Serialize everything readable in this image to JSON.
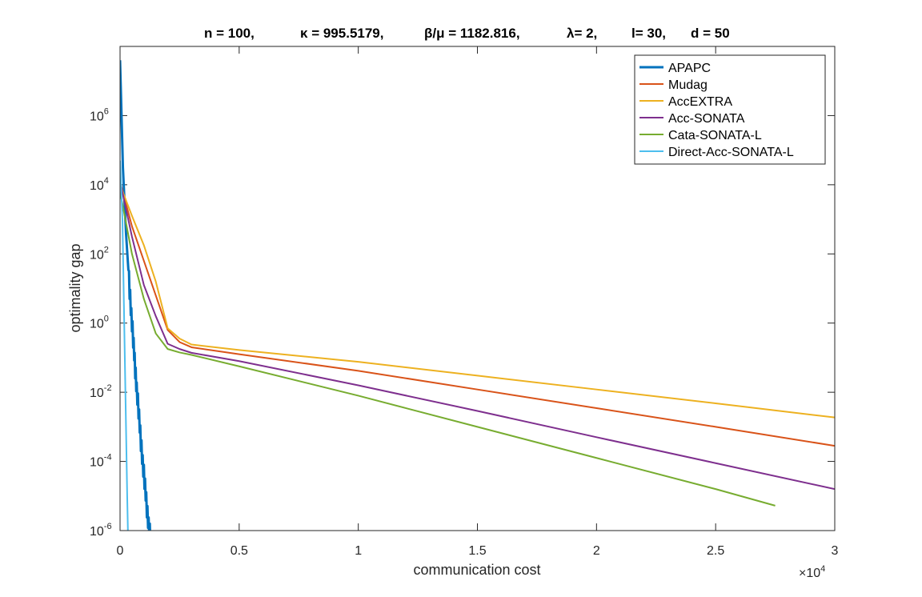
{
  "chart_data": {
    "type": "line",
    "title_parts": [
      "n = 100,",
      "κ = 995.5179,",
      "β/μ = 1182.816,",
      "λ= 2,",
      "l= 30,",
      "d = 50"
    ],
    "xlabel": "communication cost",
    "ylabel": "optimality gap",
    "x_multiplier_label": "×10",
    "x_multiplier_exponent": "4",
    "xlim": [
      0,
      3
    ],
    "ylim_log10": [
      -6,
      8
    ],
    "y_scale": "log",
    "xticks": [
      {
        "value": 0,
        "label": "0"
      },
      {
        "value": 0.5,
        "label": "0.5"
      },
      {
        "value": 1,
        "label": "1"
      },
      {
        "value": 1.5,
        "label": "1.5"
      },
      {
        "value": 2,
        "label": "2"
      },
      {
        "value": 2.5,
        "label": "2.5"
      },
      {
        "value": 3,
        "label": "3"
      }
    ],
    "yticks": [
      {
        "exp": -6,
        "base": "10",
        "label": "-6"
      },
      {
        "exp": -4,
        "base": "10",
        "label": "-4"
      },
      {
        "exp": -2,
        "base": "10",
        "label": "-2"
      },
      {
        "exp": 0,
        "base": "10",
        "label": "0"
      },
      {
        "exp": 2,
        "base": "10",
        "label": "2"
      },
      {
        "exp": 4,
        "base": "10",
        "label": "4"
      },
      {
        "exp": 6,
        "base": "10",
        "label": "6"
      }
    ],
    "legend_position": "top-right",
    "grid": false,
    "series": [
      {
        "name": "APAPC",
        "color": "#0072BD",
        "width": 3,
        "jagged": true,
        "points": [
          [
            0,
            7.6
          ],
          [
            0.012,
            4.5
          ],
          [
            0.025,
            2.6
          ],
          [
            0.04,
            1.0
          ],
          [
            0.055,
            -0.5
          ],
          [
            0.07,
            -1.9
          ],
          [
            0.085,
            -3.2
          ],
          [
            0.1,
            -4.4
          ],
          [
            0.115,
            -5.5
          ],
          [
            0.13,
            -6.4
          ]
        ]
      },
      {
        "name": "Mudag",
        "color": "#D95319",
        "width": 2,
        "points": [
          [
            0,
            4.1
          ],
          [
            0.05,
            2.8
          ],
          [
            0.1,
            1.8
          ],
          [
            0.15,
            0.8
          ],
          [
            0.2,
            -0.2
          ],
          [
            0.25,
            -0.55
          ],
          [
            0.3,
            -0.7
          ],
          [
            0.5,
            -0.9
          ],
          [
            1.0,
            -1.38
          ],
          [
            1.5,
            -1.92
          ],
          [
            2.0,
            -2.46
          ],
          [
            2.5,
            -3.0
          ],
          [
            3.0,
            -3.55
          ]
        ]
      },
      {
        "name": "AccEXTRA",
        "color": "#EDB120",
        "width": 2,
        "points": [
          [
            0,
            4.0
          ],
          [
            0.05,
            3.1
          ],
          [
            0.1,
            2.25
          ],
          [
            0.15,
            1.2
          ],
          [
            0.2,
            -0.15
          ],
          [
            0.25,
            -0.45
          ],
          [
            0.3,
            -0.62
          ],
          [
            0.5,
            -0.78
          ],
          [
            1.0,
            -1.12
          ],
          [
            1.5,
            -1.52
          ],
          [
            2.0,
            -1.92
          ],
          [
            2.5,
            -2.32
          ],
          [
            3.0,
            -2.73
          ]
        ]
      },
      {
        "name": "Acc-SONATA",
        "color": "#7E2F8E",
        "width": 2,
        "points": [
          [
            0,
            4.1
          ],
          [
            0.05,
            2.5
          ],
          [
            0.1,
            1.1
          ],
          [
            0.15,
            0.2
          ],
          [
            0.2,
            -0.6
          ],
          [
            0.25,
            -0.75
          ],
          [
            0.3,
            -0.86
          ],
          [
            0.5,
            -1.1
          ],
          [
            1.0,
            -1.8
          ],
          [
            1.5,
            -2.54
          ],
          [
            2.0,
            -3.3
          ],
          [
            2.5,
            -4.05
          ],
          [
            3.0,
            -4.8
          ]
        ]
      },
      {
        "name": "Cata-SONATA-L",
        "color": "#77AC30",
        "width": 2,
        "points": [
          [
            0,
            3.8
          ],
          [
            0.05,
            2.0
          ],
          [
            0.1,
            0.7
          ],
          [
            0.15,
            -0.3
          ],
          [
            0.2,
            -0.75
          ],
          [
            0.25,
            -0.85
          ],
          [
            0.3,
            -0.92
          ],
          [
            0.5,
            -1.25
          ],
          [
            1.0,
            -2.1
          ],
          [
            1.5,
            -3.0
          ],
          [
            2.0,
            -3.9
          ],
          [
            2.5,
            -4.8
          ],
          [
            2.75,
            -5.28
          ]
        ]
      },
      {
        "name": "Direct-Acc-SONATA-L",
        "color": "#4DBEEE",
        "width": 2,
        "points": [
          [
            0,
            4.7
          ],
          [
            0.01,
            3.0
          ],
          [
            0.02,
            -1.0
          ],
          [
            0.03,
            -5.0
          ],
          [
            0.035,
            -6.7
          ]
        ]
      }
    ]
  }
}
